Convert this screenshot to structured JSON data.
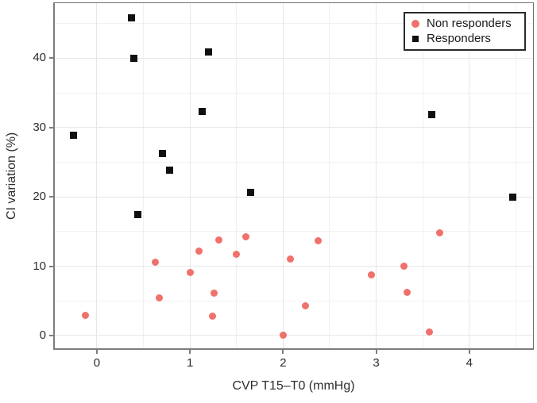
{
  "chart_data": {
    "type": "scatter",
    "title": "",
    "xlabel": "CVP T15–T0 (mmHg)",
    "ylabel": "CI variation (%)",
    "xlim": [
      -0.469,
      4.693
    ],
    "ylim": [
      -2.06,
      48.04
    ],
    "x_ticks": [
      0,
      1,
      2,
      3,
      4
    ],
    "y_ticks": [
      0,
      10,
      20,
      30,
      40
    ],
    "x_minor_ticks": [
      0.5,
      1.5,
      2.5,
      3.5,
      4.5
    ],
    "y_minor_ticks": [
      5,
      15,
      25,
      35,
      45
    ],
    "grid": true,
    "legend_position": "top-right",
    "series": [
      {
        "name": "Non responders",
        "marker": "circle",
        "color": "#f0716c",
        "points": [
          [
            -0.12,
            2.9
          ],
          [
            0.63,
            10.6
          ],
          [
            0.67,
            5.4
          ],
          [
            1.0,
            9.1
          ],
          [
            1.1,
            12.2
          ],
          [
            1.24,
            2.8
          ],
          [
            1.26,
            6.1
          ],
          [
            1.31,
            13.8
          ],
          [
            1.5,
            11.7
          ],
          [
            1.6,
            14.2
          ],
          [
            2.0,
            0.0
          ],
          [
            2.08,
            11.0
          ],
          [
            2.24,
            4.3
          ],
          [
            2.38,
            13.7
          ],
          [
            2.95,
            8.8
          ],
          [
            3.3,
            10.0
          ],
          [
            3.33,
            6.2
          ],
          [
            3.57,
            0.5
          ],
          [
            3.68,
            14.8
          ]
        ]
      },
      {
        "name": "Responders",
        "marker": "square",
        "color": "#101010",
        "points": [
          [
            -0.25,
            28.9
          ],
          [
            0.37,
            45.8
          ],
          [
            0.4,
            40.0
          ],
          [
            0.44,
            17.4
          ],
          [
            0.7,
            26.3
          ],
          [
            0.78,
            23.9
          ],
          [
            1.13,
            32.3
          ],
          [
            1.2,
            40.9
          ],
          [
            1.65,
            20.6
          ],
          [
            3.6,
            31.9
          ],
          [
            4.47,
            20.0
          ]
        ]
      }
    ],
    "colors": {
      "non_responders": "#f0716c",
      "responders": "#101010",
      "grid_major": "#e7e7e7",
      "grid_minor": "#f1f1f1",
      "axis_line": "#7d7d7d"
    }
  }
}
